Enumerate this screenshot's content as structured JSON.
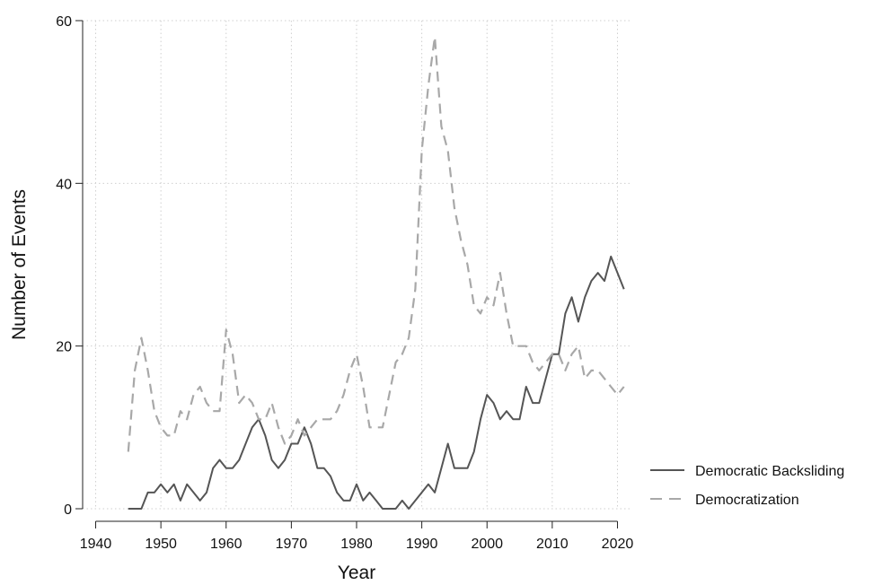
{
  "chart_data": {
    "type": "line",
    "title": "",
    "xlabel": "Year",
    "ylabel": "Number of Events",
    "xlim": [
      1938,
      2022
    ],
    "ylim": [
      0,
      60
    ],
    "x_ticks": [
      "1940",
      "1950",
      "1960",
      "1970",
      "1980",
      "1990",
      "2000",
      "2010",
      "2020"
    ],
    "y_ticks": [
      "0",
      "20",
      "40",
      "60"
    ],
    "grid": true,
    "legend_position": "right",
    "series": [
      {
        "name": "Democratic Backsliding",
        "color": "#555555",
        "style": "solid",
        "x": [
          1945,
          1946,
          1947,
          1948,
          1949,
          1950,
          1951,
          1952,
          1953,
          1954,
          1955,
          1956,
          1957,
          1958,
          1959,
          1960,
          1961,
          1962,
          1963,
          1964,
          1965,
          1966,
          1967,
          1968,
          1969,
          1970,
          1971,
          1972,
          1973,
          1974,
          1975,
          1976,
          1977,
          1978,
          1979,
          1980,
          1981,
          1982,
          1983,
          1984,
          1985,
          1986,
          1987,
          1988,
          1989,
          1990,
          1991,
          1992,
          1993,
          1994,
          1995,
          1996,
          1997,
          1998,
          1999,
          2000,
          2001,
          2002,
          2003,
          2004,
          2005,
          2006,
          2007,
          2008,
          2009,
          2010,
          2011,
          2012,
          2013,
          2014,
          2015,
          2016,
          2017,
          2018,
          2019,
          2020,
          2021
        ],
        "y": [
          0,
          0,
          0,
          2,
          2,
          3,
          2,
          3,
          1,
          3,
          2,
          1,
          2,
          5,
          6,
          5,
          5,
          6,
          8,
          10,
          11,
          9,
          6,
          5,
          6,
          8,
          8,
          10,
          8,
          5,
          5,
          4,
          2,
          1,
          1,
          3,
          1,
          2,
          1,
          0,
          0,
          0,
          1,
          0,
          1,
          2,
          3,
          2,
          5,
          8,
          5,
          5,
          5,
          7,
          11,
          14,
          13,
          11,
          12,
          11,
          11,
          15,
          13,
          13,
          16,
          19,
          19,
          24,
          26,
          23,
          26,
          28,
          29,
          28,
          31,
          29,
          27
        ]
      },
      {
        "name": "Democratization",
        "color": "#a8a8a8",
        "style": "dashed",
        "x": [
          1945,
          1946,
          1947,
          1948,
          1949,
          1950,
          1951,
          1952,
          1953,
          1954,
          1955,
          1956,
          1957,
          1958,
          1959,
          1960,
          1961,
          1962,
          1963,
          1964,
          1965,
          1966,
          1967,
          1968,
          1969,
          1970,
          1971,
          1972,
          1973,
          1974,
          1975,
          1976,
          1977,
          1978,
          1979,
          1980,
          1981,
          1982,
          1983,
          1984,
          1985,
          1986,
          1987,
          1988,
          1989,
          1990,
          1991,
          1992,
          1993,
          1994,
          1995,
          1996,
          1997,
          1998,
          1999,
          2000,
          2001,
          2002,
          2003,
          2004,
          2005,
          2006,
          2007,
          2008,
          2009,
          2010,
          2011,
          2012,
          2013,
          2014,
          2015,
          2016,
          2017,
          2018,
          2019,
          2020,
          2021
        ],
        "y": [
          7,
          17,
          21,
          17,
          12,
          10,
          9,
          9,
          12,
          11,
          14,
          15,
          13,
          12,
          12,
          22,
          19,
          13,
          14,
          13,
          11,
          11,
          13,
          10,
          8,
          9,
          11,
          9,
          10,
          11,
          11,
          11,
          12,
          14,
          17,
          19,
          15,
          10,
          10,
          10,
          14,
          18,
          19,
          21,
          27,
          44,
          52,
          58,
          47,
          44,
          37,
          33,
          30,
          25,
          24,
          26,
          25,
          29,
          24,
          20,
          20,
          20,
          18,
          17,
          18,
          19,
          19,
          17,
          19,
          20,
          16,
          17,
          17,
          16,
          15,
          14,
          15
        ]
      }
    ]
  }
}
